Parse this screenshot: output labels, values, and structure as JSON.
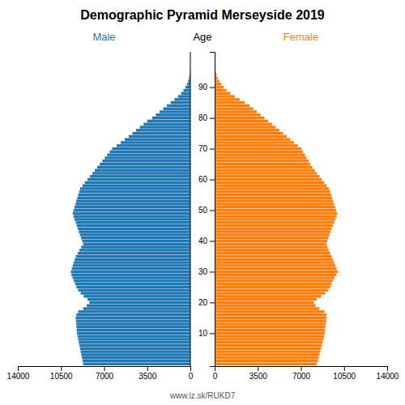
{
  "chart_data": {
    "type": "bar",
    "orientation": "horizontal",
    "title": "Demographic Pyramid Merseyside 2019",
    "ylabel": "Age",
    "annotations": [
      "www.iz.sk/RUKD7"
    ],
    "grid": false,
    "categories": [
      0,
      1,
      2,
      3,
      4,
      5,
      6,
      7,
      8,
      9,
      10,
      11,
      12,
      13,
      14,
      15,
      16,
      17,
      18,
      19,
      20,
      21,
      22,
      23,
      24,
      25,
      26,
      27,
      28,
      29,
      30,
      31,
      32,
      33,
      34,
      35,
      36,
      37,
      38,
      39,
      40,
      41,
      42,
      43,
      44,
      45,
      46,
      47,
      48,
      49,
      50,
      51,
      52,
      53,
      54,
      55,
      56,
      57,
      58,
      59,
      60,
      61,
      62,
      63,
      64,
      65,
      66,
      67,
      68,
      69,
      70,
      71,
      72,
      73,
      74,
      75,
      76,
      77,
      78,
      79,
      80,
      81,
      82,
      83,
      84,
      85,
      86,
      87,
      88,
      89,
      90,
      91,
      92,
      93,
      94,
      95,
      96,
      97,
      98,
      99,
      100
    ],
    "series": [
      {
        "name": "Male",
        "values": [
          8700,
          8750,
          8800,
          8850,
          8900,
          8950,
          9000,
          9050,
          9100,
          9150,
          9200,
          9220,
          9240,
          9260,
          9280,
          9300,
          9250,
          9100,
          8700,
          8400,
          8200,
          8350,
          8650,
          8900,
          9100,
          9250,
          9350,
          9450,
          9550,
          9650,
          9700,
          9620,
          9540,
          9460,
          9380,
          9300,
          9150,
          9000,
          8850,
          8700,
          8780,
          8870,
          8960,
          9050,
          9130,
          9220,
          9300,
          9400,
          9480,
          9540,
          9480,
          9400,
          9320,
          9250,
          9170,
          9100,
          9020,
          8940,
          8750,
          8560,
          8350,
          8150,
          7950,
          7750,
          7550,
          7350,
          7150,
          6950,
          6750,
          6550,
          6350,
          5980,
          5650,
          5320,
          5000,
          4700,
          4400,
          4100,
          3800,
          3500,
          3100,
          2800,
          2500,
          2200,
          1900,
          1600,
          1300,
          1000,
          750,
          550,
          390,
          270,
          175,
          108,
          63,
          36,
          20,
          11,
          5,
          2,
          1
        ]
      },
      {
        "name": "Female",
        "values": [
          8300,
          8380,
          8450,
          8510,
          8570,
          8640,
          8700,
          8760,
          8820,
          8880,
          8940,
          8970,
          9000,
          9030,
          9055,
          9075,
          9090,
          8920,
          8500,
          8200,
          8050,
          8280,
          8650,
          8980,
          9230,
          9380,
          9480,
          9580,
          9730,
          9880,
          10000,
          9900,
          9800,
          9700,
          9600,
          9500,
          9370,
          9260,
          9160,
          9060,
          9140,
          9230,
          9320,
          9410,
          9500,
          9600,
          9700,
          9800,
          9900,
          9960,
          9870,
          9780,
          9690,
          9610,
          9530,
          9450,
          9370,
          9290,
          9090,
          8890,
          8690,
          8500,
          8310,
          8120,
          7930,
          7750,
          7640,
          7450,
          7340,
          7150,
          7050,
          6750,
          6450,
          6150,
          5850,
          5550,
          5250,
          4950,
          4650,
          4350,
          4030,
          3730,
          3430,
          3130,
          2830,
          2430,
          2030,
          1630,
          1270,
          960,
          730,
          545,
          380,
          255,
          163,
          97,
          58,
          32,
          17,
          8,
          3
        ]
      }
    ],
    "xlim": [
      0,
      14000
    ],
    "xticks": [
      0,
      3500,
      7000,
      10500,
      14000
    ],
    "ylim": [
      -0.7,
      101.5
    ],
    "yticks": [
      10,
      20,
      30,
      40,
      50,
      60,
      70,
      80,
      90
    ]
  }
}
